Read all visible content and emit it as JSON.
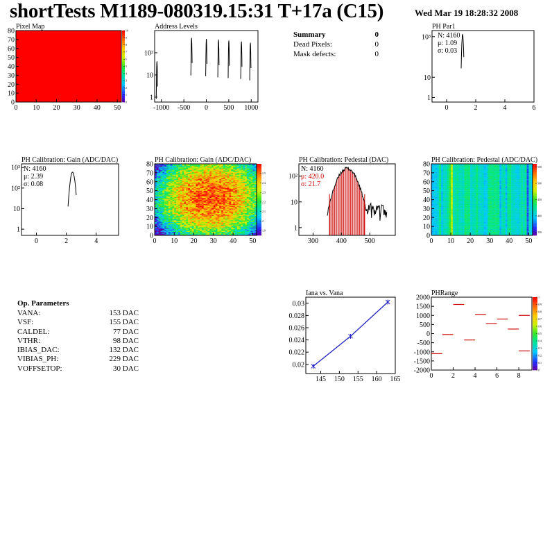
{
  "header": {
    "title": "shortTests M1189-080319.15:31 T+17a (C15)",
    "date": "Wed Mar 19 18:28:32 2008"
  },
  "summary": {
    "title": "Summary",
    "title_value": "0",
    "rows": [
      {
        "label": "Dead Pixels:",
        "value": "0"
      },
      {
        "label": "Mask defects:",
        "value": "0"
      }
    ]
  },
  "op_params": {
    "title": "Op. Parameters",
    "rows": [
      {
        "label": "VANA:",
        "value": "153 DAC"
      },
      {
        "label": "VSF:",
        "value": "155 DAC"
      },
      {
        "label": "CALDEL:",
        "value": "77 DAC"
      },
      {
        "label": "VTHR:",
        "value": "98 DAC"
      },
      {
        "label": "IBIAS_DAC:",
        "value": "132 DAC"
      },
      {
        "label": "VIBIAS_PH:",
        "value": "229 DAC"
      },
      {
        "label": "VOFFSETOP:",
        "value": "30 DAC"
      }
    ]
  },
  "chart_data": [
    {
      "id": "pixel_map",
      "type": "heatmap",
      "title": "Pixel Map",
      "xlim": [
        0,
        52
      ],
      "ylim": [
        0,
        80
      ],
      "x_ticks": [
        0,
        10,
        20,
        30,
        40,
        50
      ],
      "y_ticks": [
        0,
        10,
        20,
        30,
        40,
        50,
        60,
        70,
        80
      ],
      "zlim": [
        0,
        10
      ],
      "z_ticks": [
        0,
        1,
        2,
        3,
        4,
        5,
        6,
        7,
        8,
        9,
        10
      ],
      "uniform_value": 10,
      "fill_color": "#ff0000"
    },
    {
      "id": "address_levels",
      "type": "bar",
      "title": "Address Levels",
      "xlim": [
        -1150,
        1150
      ],
      "ylim": [
        0.6,
        1000
      ],
      "log_y": true,
      "x_ticks": [
        -1000,
        -500,
        0,
        500,
        1000
      ],
      "y_ticks": [
        {
          "v": 1,
          "label": "1"
        },
        {
          "v": 10,
          "label": "10"
        },
        {
          "v": 100,
          "label": "10²"
        }
      ],
      "peaks": [
        {
          "x": -1100,
          "height": 40
        },
        {
          "x": -330,
          "height": 450
        },
        {
          "x": 0,
          "height": 420
        },
        {
          "x": 270,
          "height": 370
        },
        {
          "x": 500,
          "height": 340
        },
        {
          "x": 780,
          "height": 310
        },
        {
          "x": 980,
          "height": 270
        }
      ]
    },
    {
      "id": "ph_par1",
      "type": "bar",
      "title": "PH Par1",
      "xlim": [
        -1,
        6
      ],
      "ylim": [
        0.6,
        2000
      ],
      "log_y": true,
      "x_ticks": [
        0,
        2,
        4,
        6
      ],
      "y_ticks": [
        {
          "v": 1,
          "label": "1"
        },
        {
          "v": 10,
          "label": "10"
        },
        {
          "v": 1000,
          "label": "10³"
        }
      ],
      "stats": {
        "n_label": "N:",
        "n": "4160",
        "mu_label": "μ:",
        "mu": "1.09",
        "sigma_label": "σ:",
        "sigma": "0.03"
      },
      "peaks": [
        {
          "x": 1.09,
          "height": 1300,
          "width": 0.18
        }
      ]
    },
    {
      "id": "gain_hist",
      "type": "bar",
      "title": "PH Calibration: Gain (ADC/DAC)",
      "xlim": [
        -1,
        5.5
      ],
      "ylim": [
        0.5,
        1500
      ],
      "log_y": true,
      "x_ticks": [
        0,
        2,
        4
      ],
      "y_ticks": [
        {
          "v": 1,
          "label": "1"
        },
        {
          "v": 10,
          "label": "10"
        },
        {
          "v": 100,
          "label": "10²"
        },
        {
          "v": 1000,
          "label": "10³"
        }
      ],
      "stats": {
        "n_label": "N:",
        "n": "4160",
        "mu_label": "μ:",
        "mu": "2.39",
        "sigma_label": "σ:",
        "sigma": "0.08"
      },
      "peaks": [
        {
          "x": 2.39,
          "height": 600,
          "width": 0.55
        }
      ]
    },
    {
      "id": "gain_map",
      "type": "heatmap",
      "title": "PH Calibration: Gain (ADC/DAC)",
      "xlim": [
        0,
        52
      ],
      "ylim": [
        0,
        80
      ],
      "x_ticks": [
        0,
        10,
        20,
        30,
        40,
        50
      ],
      "y_ticks": [
        0,
        10,
        20,
        30,
        40,
        50,
        60,
        70,
        80
      ],
      "zlim": [
        1.85,
        2.6
      ],
      "z_ticks": [
        1.9,
        2.0,
        2.1,
        2.2,
        2.3,
        2.4,
        2.5
      ]
    },
    {
      "id": "pedestal_hist",
      "type": "bar",
      "title": "PH Calibration: Pedestal (DAC)",
      "xlim": [
        250,
        590
      ],
      "ylim": [
        0.5,
        300
      ],
      "log_y": true,
      "x_ticks": [
        300,
        400,
        500
      ],
      "y_ticks": [
        {
          "v": 1,
          "label": "1"
        },
        {
          "v": 10,
          "label": "10"
        },
        {
          "v": 100,
          "label": "10²"
        }
      ],
      "stats": {
        "n_label": "N:",
        "n": "4160",
        "mu_label": "μ:",
        "mu": "420.0",
        "sigma_label": "σ:",
        "sigma": "21.7"
      },
      "mean": 420.0,
      "sigma": 21.7,
      "fit_range": [
        358,
        482
      ],
      "highlight_color": "#cc0000"
    },
    {
      "id": "pedestal_map",
      "type": "heatmap",
      "title": "PH Calibration: Pedestal (ADC/DAC)",
      "xlim": [
        0,
        52
      ],
      "ylim": [
        0,
        80
      ],
      "x_ticks": [
        0,
        10,
        20,
        30,
        40,
        50
      ],
      "y_ticks": [
        0,
        10,
        20,
        30,
        40,
        50,
        60,
        70,
        80
      ],
      "zlim": [
        340,
        560
      ],
      "z_ticks": [
        350,
        400,
        450,
        500,
        550
      ]
    },
    {
      "id": "iana_vs_vana",
      "type": "line",
      "title": "Iana vs. Vana",
      "xlim": [
        141,
        165
      ],
      "ylim": [
        0.0185,
        0.031
      ],
      "x_ticks": [
        145,
        150,
        155,
        160,
        165
      ],
      "y_ticks": [
        0.02,
        0.022,
        0.024,
        0.026,
        0.028,
        0.03
      ],
      "points": [
        {
          "x": 143,
          "y": 0.0197
        },
        {
          "x": 153,
          "y": 0.0246
        },
        {
          "x": 163,
          "y": 0.0302
        }
      ],
      "line_color": "#1f1fbf"
    },
    {
      "id": "ph_range",
      "type": "heatmap",
      "title": "PHRange",
      "xlim": [
        0,
        9.2
      ],
      "ylim": [
        -2000,
        2000
      ],
      "x_ticks": [
        0,
        2,
        4,
        6,
        8
      ],
      "y_ticks": [
        -2000,
        -1500,
        -1000,
        -500,
        0,
        500,
        1000,
        1500,
        2000
      ],
      "zlim": [
        0,
        1
      ],
      "z_ticks": [
        0,
        0.1,
        0.2,
        0.3,
        0.4,
        0.5,
        0.6,
        0.7,
        0.8,
        0.9,
        1
      ],
      "segments": [
        {
          "x": 0.5,
          "y": -1100
        },
        {
          "x": 1.5,
          "y": -50
        },
        {
          "x": 2.5,
          "y": 1600
        },
        {
          "x": 3.5,
          "y": -350
        },
        {
          "x": 4.5,
          "y": 1050
        },
        {
          "x": 5.5,
          "y": 550
        },
        {
          "x": 6.5,
          "y": 800
        },
        {
          "x": 7.5,
          "y": 250
        },
        {
          "x": 8.5,
          "y": 1000
        },
        {
          "x": 8.5,
          "y": -950
        }
      ],
      "segment_color": "#cc0000"
    }
  ]
}
